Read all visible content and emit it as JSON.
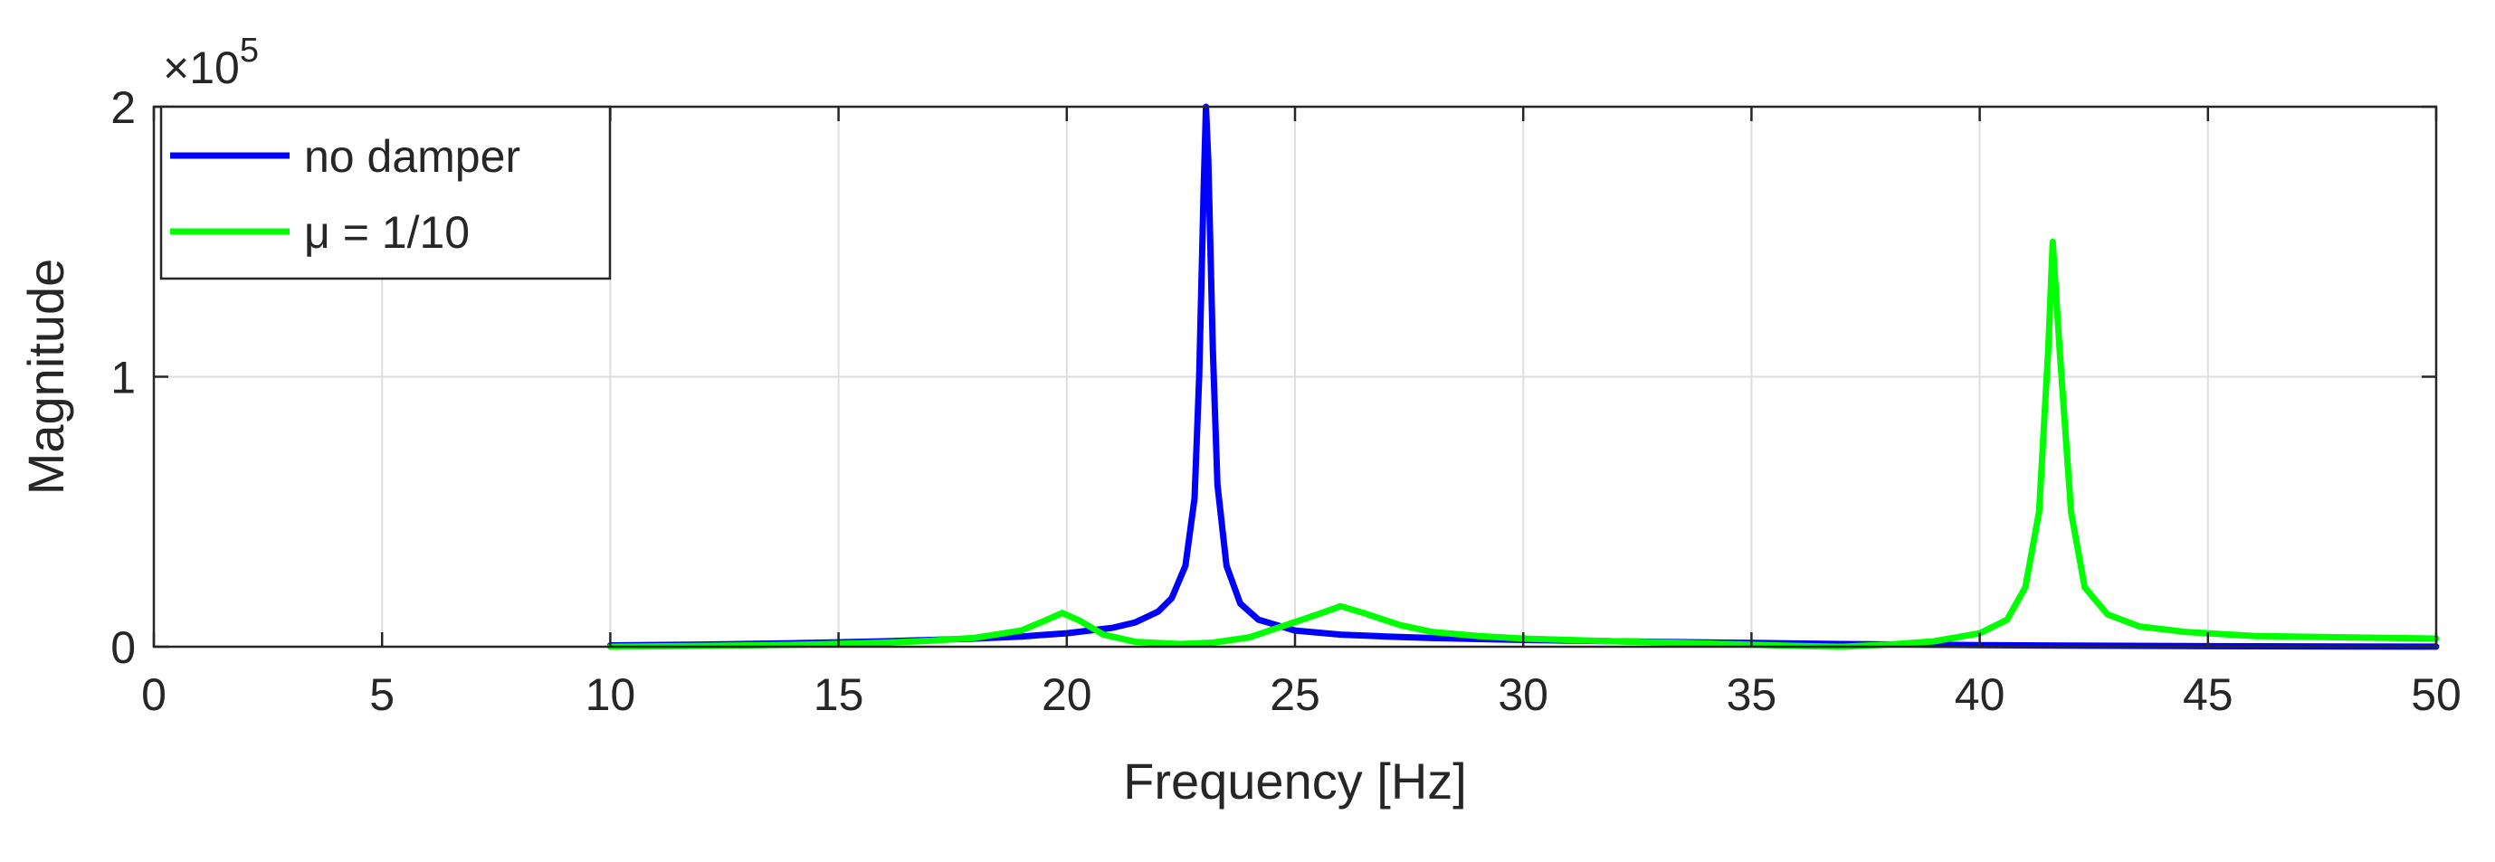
{
  "chart_data": {
    "type": "line",
    "xlabel": "Frequency [Hz]",
    "ylabel": "Magnitude",
    "xlim": [
      0,
      50
    ],
    "ylim": [
      0,
      200000
    ],
    "y_exponent": {
      "times": "×10",
      "power": "5"
    },
    "x_ticks": [
      0,
      5,
      10,
      15,
      20,
      25,
      30,
      35,
      40,
      45,
      50
    ],
    "x_tick_labels": [
      "0",
      "5",
      "10",
      "15",
      "20",
      "25",
      "30",
      "35",
      "40",
      "45",
      "50"
    ],
    "y_ticks": [
      0,
      100000,
      200000
    ],
    "y_tick_labels": [
      "0",
      "1",
      "2"
    ],
    "grid": true,
    "legend": {
      "position": "top-left",
      "boxed": true
    },
    "series": [
      {
        "name": "no damper",
        "color": "#0000ff",
        "x": [
          10,
          12,
          14,
          16,
          18,
          19,
          20,
          21,
          21.5,
          22,
          22.3,
          22.6,
          22.8,
          22.9,
          23.0,
          23.05,
          23.1,
          23.2,
          23.3,
          23.5,
          23.8,
          24.2,
          25,
          26,
          27,
          28,
          30,
          32,
          35,
          37,
          40,
          42,
          45,
          48,
          50
        ],
        "y": [
          500,
          800,
          1300,
          2000,
          3000,
          3800,
          5000,
          7000,
          9000,
          13000,
          18000,
          30000,
          55000,
          100000,
          170000,
          200000,
          180000,
          110000,
          60000,
          30000,
          16000,
          10000,
          6000,
          4500,
          3800,
          3200,
          2500,
          2000,
          1400,
          1000,
          600,
          400,
          200,
          100,
          50
        ]
      },
      {
        "name": "μ = 1/10",
        "color": "#00ff00",
        "x": [
          10,
          12,
          14,
          16,
          17,
          18,
          19,
          19.5,
          19.9,
          20.3,
          20.8,
          21.5,
          22.5,
          23.2,
          24,
          24.8,
          25.5,
          26,
          26.5,
          27.3,
          28,
          29,
          30,
          32,
          34,
          36,
          37,
          38,
          39,
          40,
          40.6,
          41.0,
          41.3,
          41.5,
          41.6,
          41.75,
          42.0,
          42.3,
          42.8,
          43.5,
          44.5,
          46,
          48,
          50
        ],
        "y": [
          0,
          300,
          700,
          1500,
          2200,
          3300,
          6000,
          9500,
          12500,
          9500,
          4500,
          1800,
          1000,
          1500,
          3500,
          8000,
          12000,
          15000,
          12500,
          8000,
          5500,
          4000,
          3000,
          2000,
          1200,
          300,
          0,
          800,
          2000,
          5000,
          10000,
          22000,
          50000,
          110000,
          150000,
          110000,
          50000,
          22000,
          12000,
          7500,
          5500,
          4000,
          3500,
          3000
        ]
      }
    ]
  }
}
